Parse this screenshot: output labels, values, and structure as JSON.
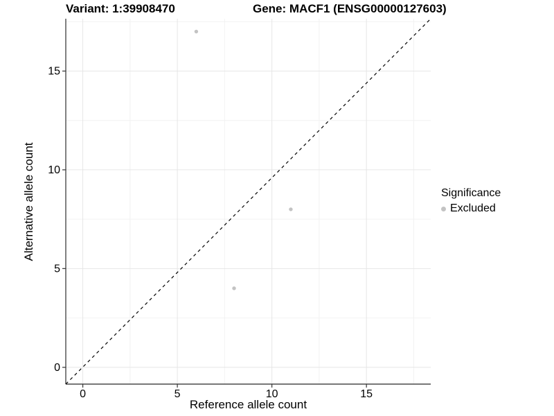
{
  "titles": {
    "variant": "Variant: 1:39908470",
    "gene": "Gene: MACF1 (ENSG00000127603)"
  },
  "legend": {
    "title": "Significance",
    "entries": [
      {
        "label": "Excluded",
        "color": "#c3c3c3"
      }
    ]
  },
  "chart_data": {
    "type": "scatter",
    "xlabel": "Reference allele count",
    "ylabel": "Alternative allele count",
    "xlim": [
      -0.9,
      18.4
    ],
    "ylim": [
      -0.85,
      17.65
    ],
    "x_major_ticks": [
      0,
      5,
      10,
      15
    ],
    "x_minor_ticks": [
      2.5,
      7.5,
      12.5,
      17.5
    ],
    "y_major_ticks": [
      0,
      5,
      10,
      15
    ],
    "y_minor_ticks": [
      2.5,
      7.5,
      12.5,
      17.5
    ],
    "grid": "major+minor",
    "legend_position": "right",
    "reference_line": {
      "kind": "identity y=x, corner to corner",
      "style": "dashed",
      "color": "#000000"
    },
    "series": [
      {
        "name": "Excluded",
        "color": "#c3c3c3",
        "points": [
          {
            "x": 6,
            "y": 17
          },
          {
            "x": 11,
            "y": 8
          },
          {
            "x": 8,
            "y": 4
          }
        ]
      }
    ],
    "colors": {
      "grid_major": "#e6e6e6",
      "grid_minor": "#f2f2f2",
      "axis_line": "#4a4a4a",
      "tick": "#333333",
      "text": "#000000",
      "background": "#ffffff"
    }
  }
}
